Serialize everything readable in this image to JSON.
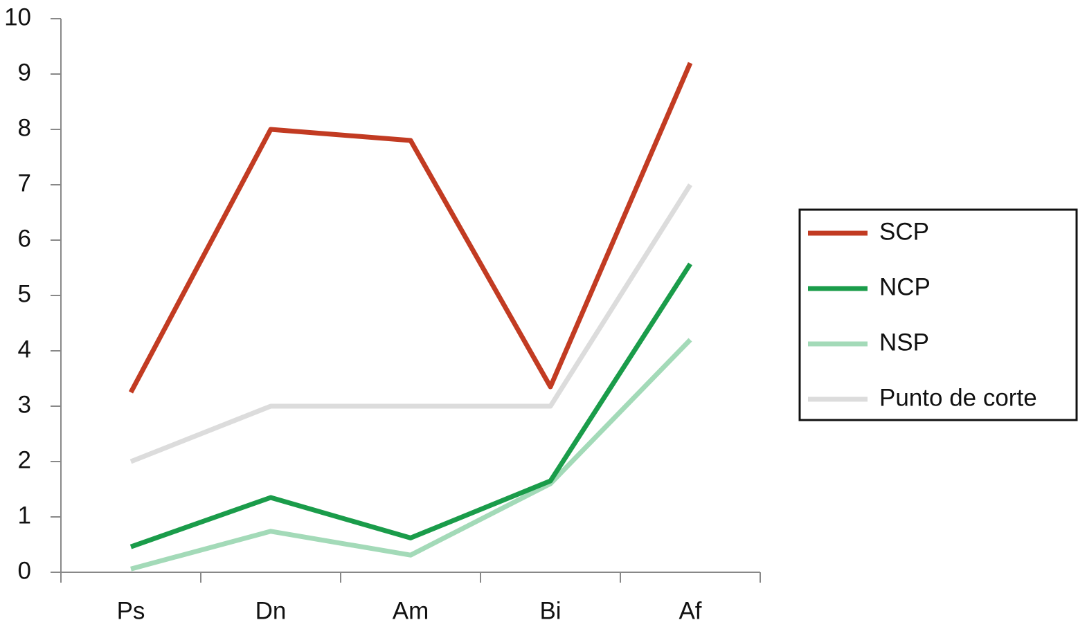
{
  "chart_data": {
    "type": "line",
    "categories": [
      "Ps",
      "Dn",
      "Am",
      "Bi",
      "Af"
    ],
    "series": [
      {
        "name": "SCP",
        "color": "#c23b22",
        "values": [
          3.25,
          8.0,
          7.8,
          3.35,
          9.2
        ]
      },
      {
        "name": "NCP",
        "color": "#1a9c4a",
        "values": [
          0.46,
          1.35,
          0.62,
          1.65,
          5.57
        ]
      },
      {
        "name": "NSP",
        "color": "#a3dab8",
        "values": [
          0.06,
          0.74,
          0.31,
          1.6,
          4.2
        ]
      },
      {
        "name": "Punto de corte",
        "color": "#dcdcdc",
        "values": [
          2,
          3,
          3,
          3,
          7
        ]
      }
    ],
    "ylim": [
      0,
      10
    ],
    "yticks": [
      0,
      1,
      2,
      3,
      4,
      5,
      6,
      7,
      8,
      9,
      10
    ],
    "grid": false,
    "legend": "right"
  }
}
